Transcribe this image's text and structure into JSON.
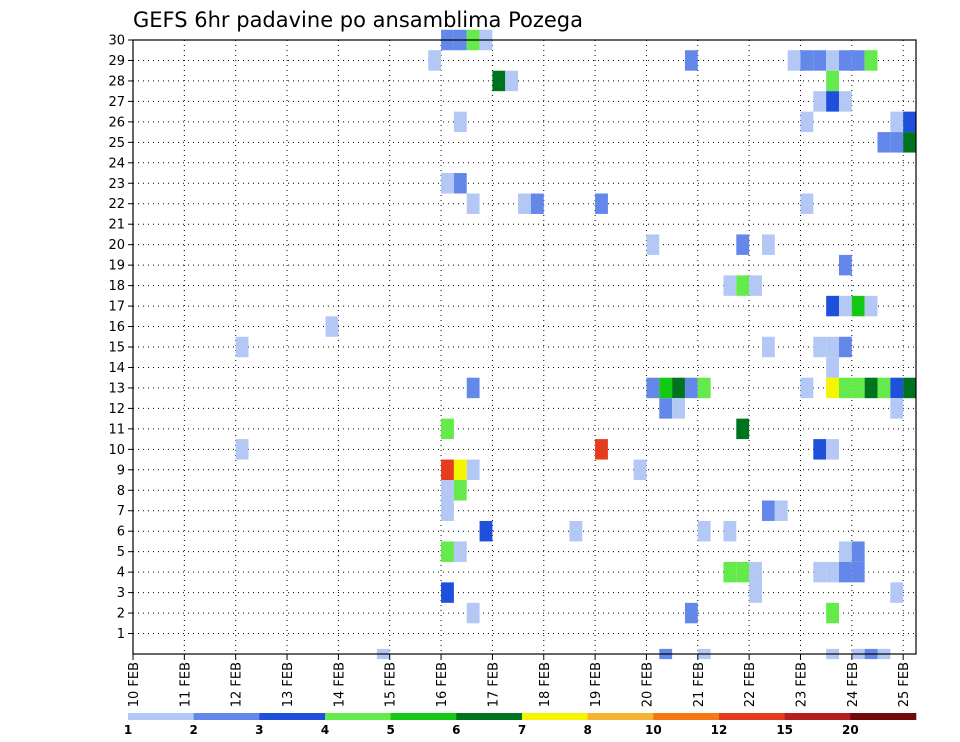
{
  "chart_data": {
    "type": "heatmap",
    "title": "GEFS 6hr padavine po ansamblima Pozega",
    "xlabel": "",
    "ylabel": "",
    "x_ticks": [
      "10 FEB",
      "11 FEB",
      "12 FEB",
      "13 FEB",
      "14 FEB",
      "15 FEB",
      "16 FEB",
      "17 FEB",
      "18 FEB",
      "19 FEB",
      "20 FEB",
      "21 FEB",
      "22 FEB",
      "23 FEB",
      "24 FEB",
      "25 FEB"
    ],
    "y_ticks": [
      "1",
      "2",
      "3",
      "4",
      "5",
      "6",
      "7",
      "8",
      "9",
      "10",
      "11",
      "12",
      "13",
      "14",
      "15",
      "16",
      "17",
      "18",
      "19",
      "20",
      "21",
      "22",
      "23",
      "24",
      "25",
      "26",
      "27",
      "28",
      "29",
      "30"
    ],
    "xlim": [
      0,
      15.25
    ],
    "ylim": [
      0,
      30
    ],
    "grid": true,
    "legend": {
      "position": "bottom",
      "labels": [
        "1",
        "2",
        "3",
        "4",
        "5",
        "6",
        "7",
        "8",
        "10",
        "12",
        "15",
        "20"
      ],
      "colors": [
        "#b4c8f5",
        "#6488ea",
        "#1e50dc",
        "#64eb4b",
        "#14c814",
        "#00731e",
        "#f5f500",
        "#f5b432",
        "#f57814",
        "#e63c1e",
        "#b41e1e",
        "#730a0a"
      ]
    },
    "cells": [
      [
        6.0,
        30,
        2
      ],
      [
        6.25,
        30,
        2
      ],
      [
        6.5,
        30,
        4
      ],
      [
        6.75,
        30,
        1
      ],
      [
        5.75,
        29,
        1
      ],
      [
        10.75,
        29,
        2
      ],
      [
        12.75,
        29,
        1
      ],
      [
        13.0,
        29,
        2
      ],
      [
        13.25,
        29,
        2
      ],
      [
        13.5,
        29,
        1
      ],
      [
        13.75,
        29,
        2
      ],
      [
        14.0,
        29,
        2
      ],
      [
        14.25,
        29,
        4
      ],
      [
        7.0,
        28,
        6
      ],
      [
        7.25,
        28,
        1
      ],
      [
        13.5,
        28,
        4
      ],
      [
        13.25,
        27,
        1
      ],
      [
        13.5,
        27,
        3
      ],
      [
        13.75,
        27,
        1
      ],
      [
        6.25,
        26,
        1
      ],
      [
        13.0,
        26,
        1
      ],
      [
        14.75,
        26,
        1
      ],
      [
        15.0,
        26,
        3
      ],
      [
        14.5,
        25,
        2
      ],
      [
        14.75,
        25,
        2
      ],
      [
        15.0,
        25,
        6
      ],
      [
        6.0,
        23,
        1
      ],
      [
        6.25,
        23,
        2
      ],
      [
        6.5,
        22,
        1
      ],
      [
        7.5,
        22,
        1
      ],
      [
        7.75,
        22,
        2
      ],
      [
        9.0,
        22,
        2
      ],
      [
        13.0,
        22,
        1
      ],
      [
        10.0,
        20,
        1
      ],
      [
        11.75,
        20,
        2
      ],
      [
        12.25,
        20,
        1
      ],
      [
        13.75,
        19,
        2
      ],
      [
        11.5,
        18,
        1
      ],
      [
        11.75,
        18,
        4
      ],
      [
        12.0,
        18,
        1
      ],
      [
        13.5,
        17,
        3
      ],
      [
        13.75,
        17,
        1
      ],
      [
        14.0,
        17,
        5
      ],
      [
        14.25,
        17,
        1
      ],
      [
        3.75,
        16,
        1
      ],
      [
        2.0,
        15,
        1
      ],
      [
        12.25,
        15,
        1
      ],
      [
        13.25,
        15,
        1
      ],
      [
        13.5,
        15,
        1
      ],
      [
        13.75,
        15,
        2
      ],
      [
        13.5,
        14,
        1
      ],
      [
        6.5,
        13,
        2
      ],
      [
        10.0,
        13,
        2
      ],
      [
        10.25,
        13,
        5
      ],
      [
        10.5,
        13,
        6
      ],
      [
        10.75,
        13,
        2
      ],
      [
        11.0,
        13,
        4
      ],
      [
        13.0,
        13,
        1
      ],
      [
        13.5,
        13,
        7
      ],
      [
        13.75,
        13,
        4
      ],
      [
        14.0,
        13,
        4
      ],
      [
        14.25,
        13,
        6
      ],
      [
        14.5,
        13,
        4
      ],
      [
        14.75,
        13,
        3
      ],
      [
        15.0,
        13,
        6
      ],
      [
        10.25,
        12,
        2
      ],
      [
        10.5,
        12,
        1
      ],
      [
        14.75,
        12,
        1
      ],
      [
        6.0,
        11,
        4
      ],
      [
        11.75,
        11,
        6
      ],
      [
        2.0,
        10,
        1
      ],
      [
        9.0,
        10,
        10
      ],
      [
        13.25,
        10,
        3
      ],
      [
        13.5,
        10,
        1
      ],
      [
        6.0,
        9,
        10
      ],
      [
        6.25,
        9,
        7
      ],
      [
        6.5,
        9,
        1
      ],
      [
        9.75,
        9,
        1
      ],
      [
        6.0,
        8,
        1
      ],
      [
        6.25,
        8,
        4
      ],
      [
        6.0,
        7,
        1
      ],
      [
        12.25,
        7,
        2
      ],
      [
        12.5,
        7,
        1
      ],
      [
        6.75,
        6,
        3
      ],
      [
        8.5,
        6,
        1
      ],
      [
        11.0,
        6,
        1
      ],
      [
        11.5,
        6,
        1
      ],
      [
        6.0,
        5,
        4
      ],
      [
        6.25,
        5,
        1
      ],
      [
        13.75,
        5,
        1
      ],
      [
        14.0,
        5,
        2
      ],
      [
        11.5,
        4,
        4
      ],
      [
        11.75,
        4,
        4
      ],
      [
        12.0,
        4,
        1
      ],
      [
        13.25,
        4,
        1
      ],
      [
        13.5,
        4,
        1
      ],
      [
        13.75,
        4,
        2
      ],
      [
        14.0,
        4,
        2
      ],
      [
        6.0,
        3,
        3
      ],
      [
        12.0,
        3,
        1
      ],
      [
        14.75,
        3,
        1
      ],
      [
        6.5,
        2,
        1
      ],
      [
        10.75,
        2,
        2
      ],
      [
        13.5,
        2,
        4
      ],
      [
        4.75,
        0,
        1
      ],
      [
        10.25,
        0,
        2
      ],
      [
        11.0,
        0,
        1
      ],
      [
        13.5,
        0,
        1
      ],
      [
        14.0,
        0,
        1
      ],
      [
        14.25,
        0,
        2
      ],
      [
        14.5,
        0,
        1
      ]
    ]
  }
}
